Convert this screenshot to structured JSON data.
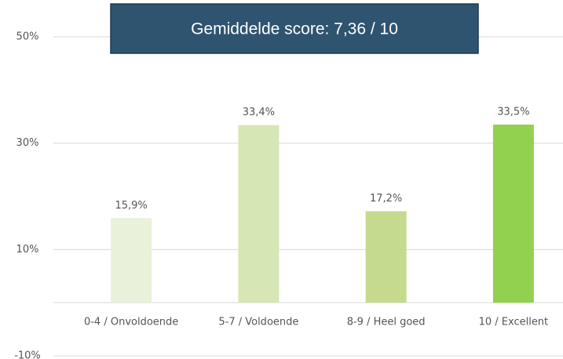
{
  "chart_data": {
    "type": "bar",
    "annotation": "Gemiddelde score: 7,36 / 10",
    "categories": [
      "0-4 / Onvoldoende",
      "5-7 / Voldoende",
      "8-9 / Heel goed",
      "10 / Excellent"
    ],
    "values": [
      15.9,
      33.4,
      17.2,
      33.5
    ],
    "value_labels": [
      "15,9%",
      "33,4%",
      "17,2%",
      "33,5%"
    ],
    "colors": [
      "#e9f1da",
      "#d7e6b5",
      "#c6da8f",
      "#92d050"
    ],
    "ylim": [
      -10,
      50
    ],
    "yticks": [
      {
        "value": -10,
        "label": "-10%"
      },
      {
        "value": 10,
        "label": "10%"
      },
      {
        "value": 30,
        "label": "30%"
      },
      {
        "value": 50,
        "label": "50%"
      }
    ],
    "grid": true
  }
}
